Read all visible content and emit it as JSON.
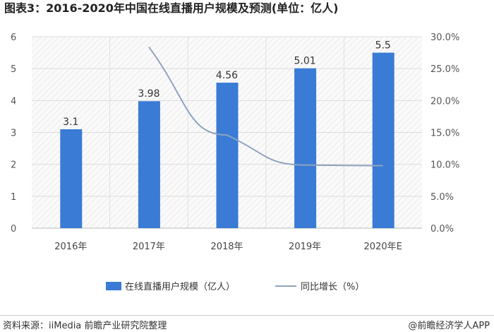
{
  "chart_data": {
    "type": "bar",
    "title": "图表3：2016-2020年中国在线直播用户规模及预测(单位：亿人)",
    "categories": [
      "2016年",
      "2017年",
      "2018年",
      "2019年",
      "2020年E"
    ],
    "series": [
      {
        "name": "在线直播用户规模（亿人）",
        "type": "bar",
        "axis": "left",
        "values": [
          3.1,
          3.98,
          4.56,
          5.01,
          5.5
        ],
        "labels": [
          "3.1",
          "3.98",
          "4.56",
          "5.01",
          "5.5"
        ],
        "color": "#3a7bd5"
      },
      {
        "name": "同比增长（%）",
        "type": "line",
        "axis": "right",
        "values": [
          null,
          28.4,
          14.6,
          9.9,
          9.8
        ],
        "color": "#8fa3c0"
      }
    ],
    "ylim": [
      0,
      6
    ],
    "yticks": [
      "0",
      "1",
      "2",
      "3",
      "4",
      "5",
      "6"
    ],
    "y2lim": [
      0,
      30
    ],
    "y2ticks": [
      "0.0%",
      "5.0%",
      "10.0%",
      "15.0%",
      "20.0%",
      "25.0%",
      "30.0%"
    ],
    "grid": true,
    "legend": "bottom"
  },
  "footer": {
    "source": "资料来源：iiMedia 前瞻产业研究院整理",
    "brand": "@前瞻经济学人APP"
  }
}
